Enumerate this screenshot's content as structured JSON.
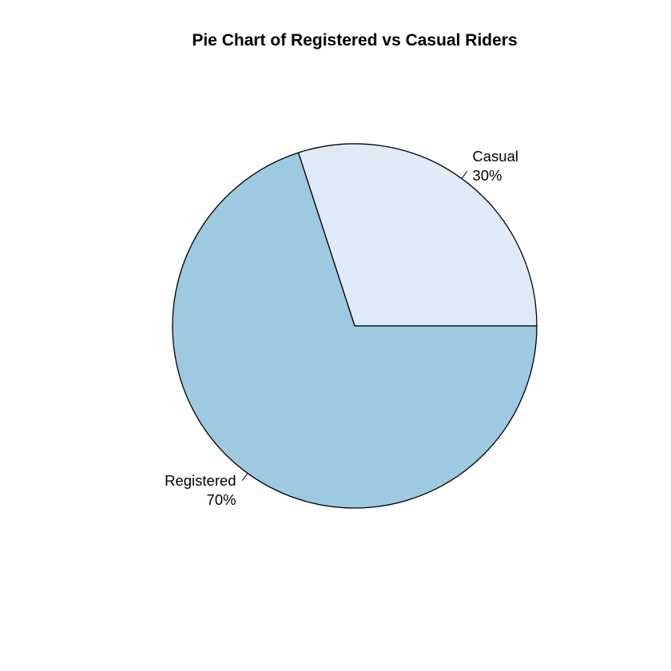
{
  "chart_data": {
    "type": "pie",
    "title": "Pie Chart of Registered vs Casual Riders",
    "slices": [
      {
        "name": "Casual",
        "label": "30%",
        "value": 30,
        "color": "#deebf7"
      },
      {
        "name": "Registered",
        "label": "70%",
        "value": 70,
        "color": "#9ecae1"
      }
    ],
    "start_angle_deg": 0,
    "direction": "counterclockwise",
    "border_color": "#000000"
  }
}
